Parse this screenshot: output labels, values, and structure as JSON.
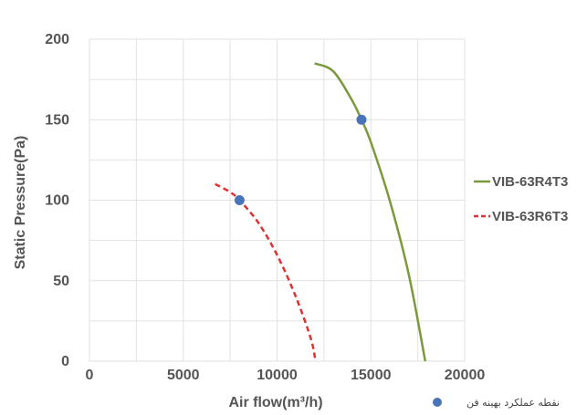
{
  "chart_data": {
    "type": "line",
    "title": "",
    "xlabel": "Air flow(m³/h)",
    "ylabel": "Static Pressure(Pa)",
    "xlim": [
      0,
      20000
    ],
    "ylim": [
      0,
      200
    ],
    "x_ticks": [
      "0",
      "5000",
      "10000",
      "15000",
      "20000"
    ],
    "y_ticks": [
      "0",
      "50",
      "100",
      "150",
      "200"
    ],
    "grid": true,
    "legend_position": "right",
    "series": [
      {
        "name": "VIB-63R4T3",
        "color": "#7a9a3c",
        "line_style": "solid",
        "x": [
          12000,
          13000,
          14000,
          14500,
          15000,
          16000,
          17000,
          17900
        ],
        "y": [
          185,
          180,
          162,
          150,
          136,
          100,
          55,
          0
        ]
      },
      {
        "name": "VIB-63R6T3",
        "color": "#e03030",
        "line_style": "dashed",
        "x": [
          6700,
          7500,
          8000,
          9000,
          10000,
          11000,
          11800,
          12050
        ],
        "y": [
          110,
          105,
          100,
          86,
          66,
          40,
          14,
          0
        ]
      }
    ],
    "optimal_points": {
      "label": "نقطه عملکرد بهینه فن",
      "color": "#4a74b8",
      "points": [
        {
          "x": 8000,
          "y": 100
        },
        {
          "x": 14500,
          "y": 150
        }
      ]
    }
  }
}
